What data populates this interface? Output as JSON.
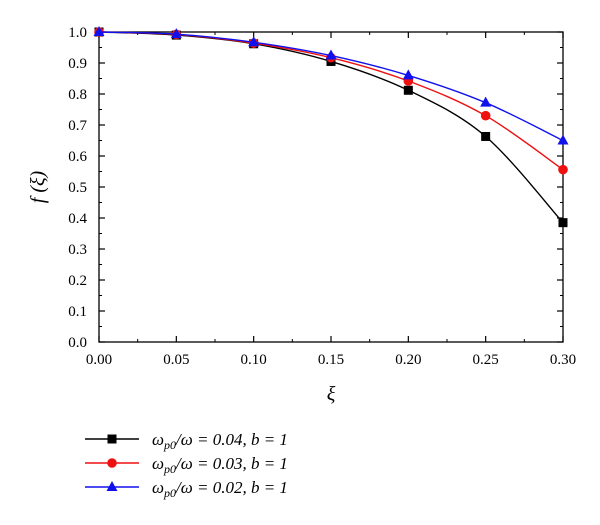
{
  "chart_data": {
    "type": "line",
    "title": "",
    "xlabel": "ξ",
    "ylabel": "f (ξ)",
    "xlim": [
      0.0,
      0.3
    ],
    "ylim": [
      0.0,
      1.0
    ],
    "x": [
      0.0,
      0.05,
      0.1,
      0.15,
      0.2,
      0.25,
      0.3
    ],
    "x_tick_labels": [
      "0.00",
      "0.05",
      "0.10",
      "0.15",
      "0.20",
      "0.25",
      "0.30"
    ],
    "y_ticks": [
      0.0,
      0.1,
      0.2,
      0.3,
      0.4,
      0.5,
      0.6,
      0.7,
      0.8,
      0.9,
      1.0
    ],
    "y_tick_labels": [
      "0.0",
      "0.1",
      "0.2",
      "0.3",
      "0.4",
      "0.5",
      "0.6",
      "0.7",
      "0.8",
      "0.9",
      "1.0"
    ],
    "grid": false,
    "legend_position": "below",
    "series": [
      {
        "name": "ω_p0/ω = 0.04, b = 1",
        "legend_main": "ω",
        "legend_sub": "p0",
        "legend_rest": "/ω = 0.04, b = 1",
        "color": "#000000",
        "marker": "square",
        "values": [
          1.0,
          0.99,
          0.962,
          0.905,
          0.812,
          0.663,
          0.385
        ]
      },
      {
        "name": "ω_p0/ω = 0.03, b = 1",
        "legend_main": "ω",
        "legend_sub": "p0",
        "legend_rest": "/ω = 0.03, b = 1",
        "color": "#ee1111",
        "marker": "circle",
        "values": [
          1.0,
          0.992,
          0.964,
          0.917,
          0.842,
          0.73,
          0.556
        ]
      },
      {
        "name": "ω_p0/ω = 0.02, b = 1",
        "legend_main": "ω",
        "legend_sub": "p0",
        "legend_rest": "/ω = 0.02, b = 1",
        "color": "#1111ee",
        "marker": "triangle",
        "values": [
          1.0,
          0.993,
          0.967,
          0.924,
          0.86,
          0.772,
          0.65
        ]
      }
    ]
  }
}
